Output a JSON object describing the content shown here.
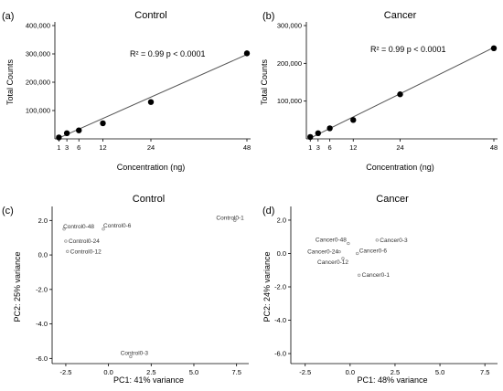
{
  "chart_data": [
    {
      "id": "a",
      "panel_label": "(a)",
      "type": "scatter",
      "title": "Control",
      "xlabel": "Concentration (ng)",
      "ylabel": "Total Counts",
      "xlim": [
        0,
        48
      ],
      "ylim": [
        0,
        400000
      ],
      "x_ticks": [
        1,
        3,
        6,
        12,
        24,
        48
      ],
      "y_ticks": [
        100000,
        200000,
        300000,
        400000
      ],
      "y_tick_labels": [
        "100,000",
        "200,000",
        "300,000",
        "400,000"
      ],
      "annotation": "R² = 0.99   p < 0.0001",
      "fit_line": [
        [
          1,
          3000
        ],
        [
          48,
          298000
        ]
      ],
      "points": [
        {
          "x": 1,
          "y": 5000
        },
        {
          "x": 3,
          "y": 20000
        },
        {
          "x": 6,
          "y": 30000
        },
        {
          "x": 12,
          "y": 55000
        },
        {
          "x": 24,
          "y": 130000
        },
        {
          "x": 48,
          "y": 302000
        }
      ]
    },
    {
      "id": "b",
      "panel_label": "(b)",
      "type": "scatter",
      "title": "Cancer",
      "xlabel": "Concentration (ng)",
      "ylabel": "Total Counts",
      "xlim": [
        0,
        48
      ],
      "ylim": [
        0,
        300000
      ],
      "x_ticks": [
        1,
        3,
        6,
        12,
        24,
        48
      ],
      "y_ticks": [
        100000,
        200000,
        300000
      ],
      "y_tick_labels": [
        "100,000",
        "200,000",
        "300,000"
      ],
      "annotation": "R² = 0.99   p < 0.0001",
      "fit_line": [
        [
          1,
          2000
        ],
        [
          48,
          242000
        ]
      ],
      "points": [
        {
          "x": 1,
          "y": 5000
        },
        {
          "x": 3,
          "y": 15000
        },
        {
          "x": 6,
          "y": 28000
        },
        {
          "x": 12,
          "y": 50000
        },
        {
          "x": 24,
          "y": 118000
        },
        {
          "x": 48,
          "y": 240000
        }
      ]
    },
    {
      "id": "c",
      "panel_label": "(c)",
      "type": "scatter",
      "title": "Control",
      "xlabel": "PC1: 41% variance",
      "ylabel": "PC2: 25% variance",
      "xlim": [
        -3.3,
        8.0
      ],
      "ylim": [
        -6.3,
        2.6
      ],
      "x_ticks": [
        -2.5,
        0.0,
        2.5,
        5.0,
        7.5
      ],
      "x_tick_labels": [
        "-2.5",
        "0.0",
        "2.5",
        "5.0",
        "7.5"
      ],
      "y_ticks": [
        -6.0,
        -4.0,
        -2.0,
        0.0,
        2.0
      ],
      "y_tick_labels": [
        "-6.0",
        "-4.0",
        "-2.0",
        "0.0",
        "2.0"
      ],
      "points": [
        {
          "label": "Control0-1",
          "x": 7.4,
          "y": 2.0
        },
        {
          "label": "Control0-6",
          "x": -0.3,
          "y": 1.5
        },
        {
          "label": "Control0-48",
          "x": -2.6,
          "y": 1.5
        },
        {
          "label": "Control0-24",
          "x": -2.5,
          "y": 0.8
        },
        {
          "label": "Control0-12",
          "x": -2.4,
          "y": 0.2
        },
        {
          "label": "Control0-3",
          "x": 1.3,
          "y": -5.9
        }
      ]
    },
    {
      "id": "d",
      "panel_label": "(d)",
      "type": "scatter",
      "title": "Cancer",
      "xlabel": "PC1: 48% variance",
      "ylabel": "PC2: 24% variance",
      "xlim": [
        -3.3,
        8.0
      ],
      "ylim": [
        -6.6,
        2.6
      ],
      "x_ticks": [
        -2.5,
        0.0,
        2.5,
        5.0,
        7.5
      ],
      "x_tick_labels": [
        "-2.5",
        "0.0",
        "2.5",
        "5.0",
        "7.5"
      ],
      "y_ticks": [
        -6.0,
        -4.0,
        -2.0,
        0.0,
        2.0
      ],
      "y_tick_labels": [
        "-6.0",
        "-4.0",
        "-2.0",
        "0.0",
        "2.0"
      ],
      "points": [
        {
          "label": "Cancer0-3",
          "x": 1.5,
          "y": 0.8
        },
        {
          "label": "Cancer0-48",
          "x": -0.1,
          "y": 0.6
        },
        {
          "label": "Cancer0-24",
          "x": -0.6,
          "y": 0.1
        },
        {
          "label": "Cancer0-6",
          "x": 0.4,
          "y": 0.0
        },
        {
          "label": "Cancer0-12",
          "x": -0.4,
          "y": -0.3
        },
        {
          "label": "Cancer0-1",
          "x": 0.5,
          "y": -1.3
        }
      ]
    }
  ]
}
